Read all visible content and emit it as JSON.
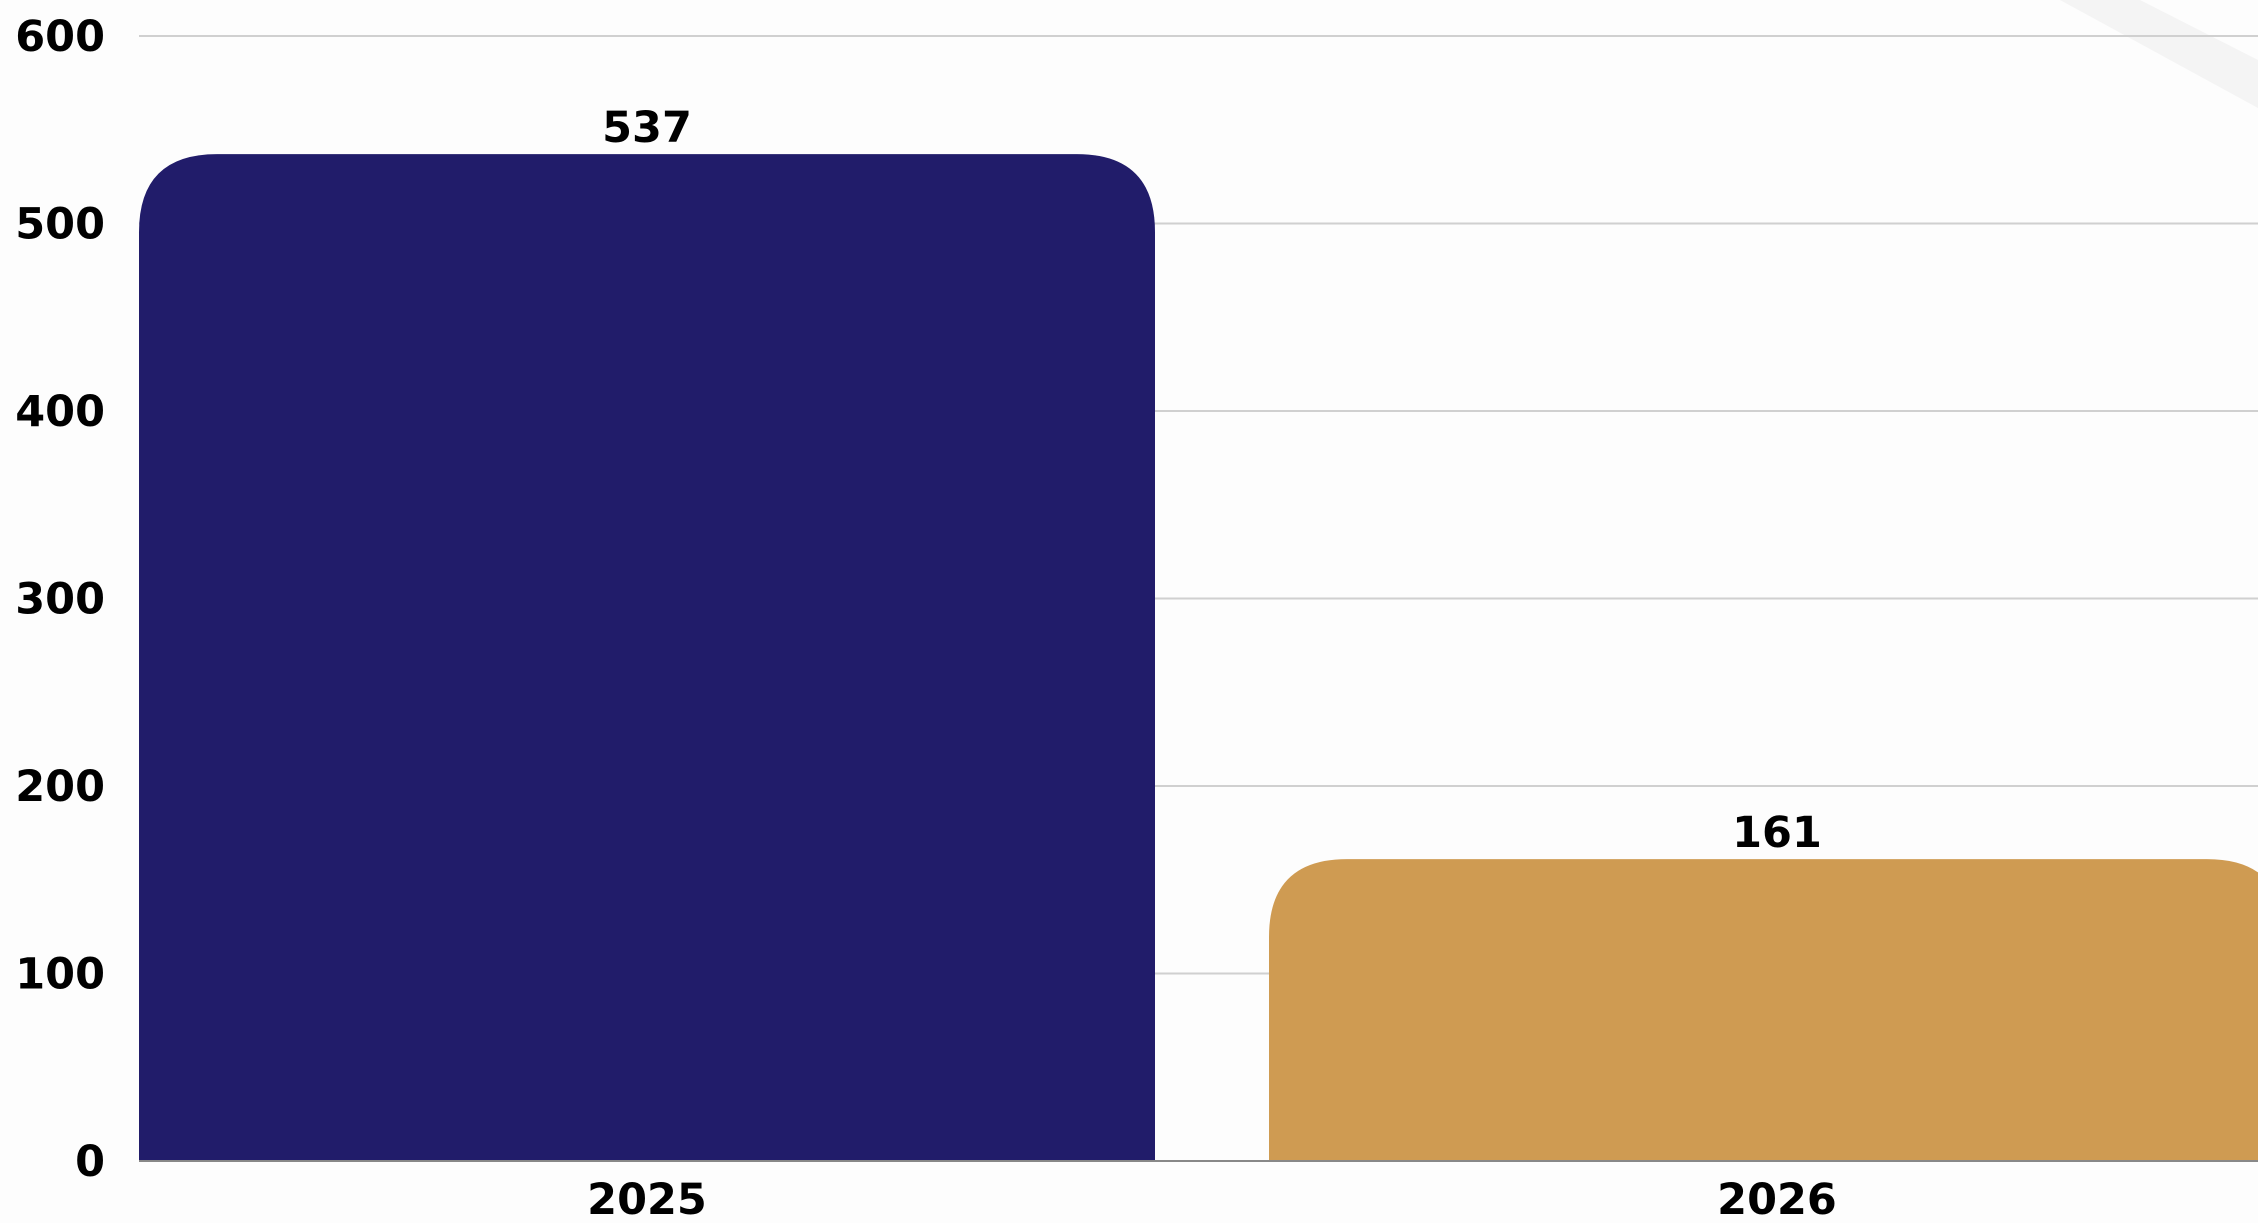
{
  "chart_data": {
    "type": "bar",
    "categories": [
      "2025",
      "2026"
    ],
    "values": [
      537,
      161
    ],
    "ylim": [
      0,
      600
    ],
    "yticks": [
      0,
      100,
      200,
      300,
      400,
      500,
      600
    ],
    "grid": true,
    "bar_colors": [
      "#211c6a",
      "#cf9b52"
    ],
    "grid_color": "#d0d0d0",
    "data_labels": true,
    "title": "",
    "xlabel": "",
    "ylabel": ""
  }
}
